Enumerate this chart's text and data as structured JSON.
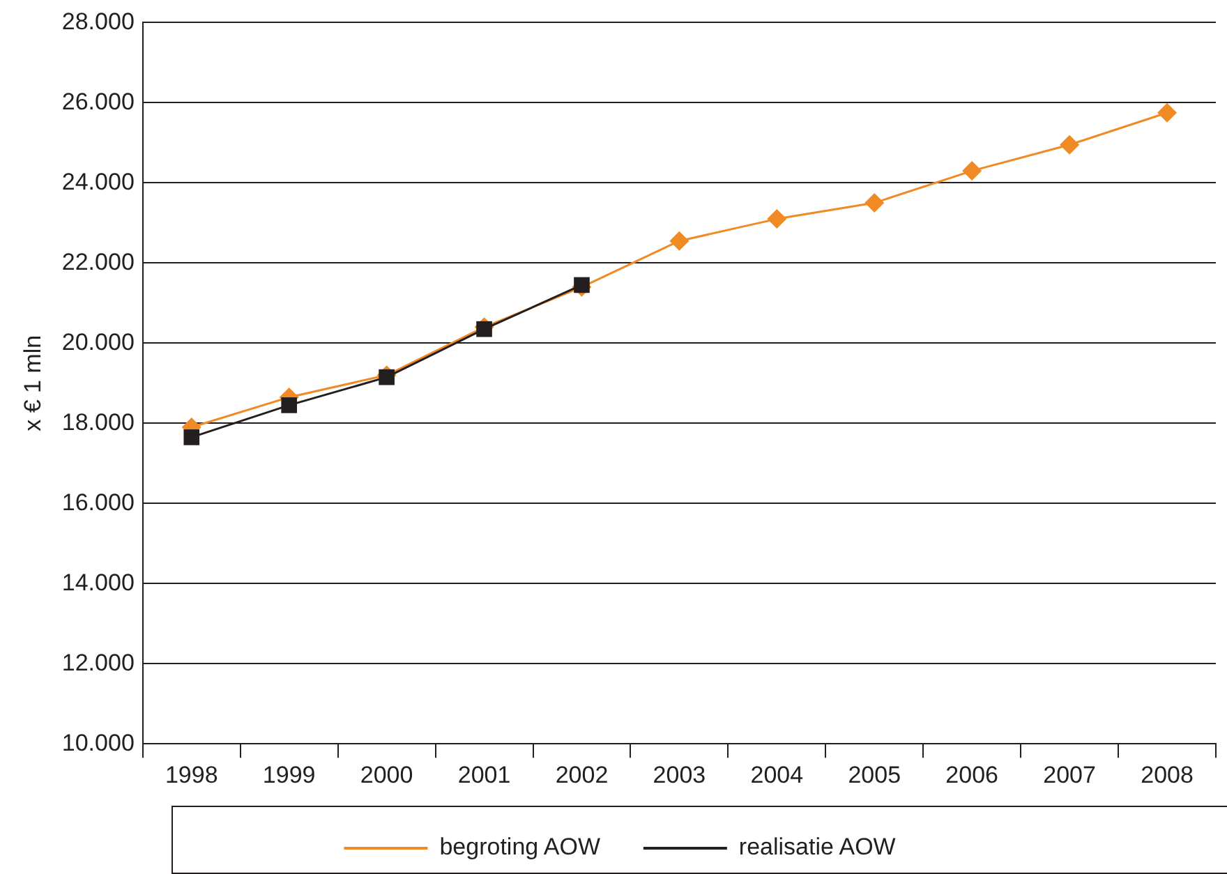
{
  "chart_data": {
    "type": "line",
    "ylabel": "x € 1 mln",
    "categories": [
      "1998",
      "1999",
      "2000",
      "2001",
      "2002",
      "2003",
      "2004",
      "2005",
      "2006",
      "2007",
      "2008"
    ],
    "series": [
      {
        "name": "begroting AOW",
        "color": "#f08a24",
        "marker": "diamond",
        "values": [
          17900,
          18650,
          19200,
          20400,
          21400,
          22550,
          23100,
          23500,
          24300,
          24950,
          25750
        ]
      },
      {
        "name": "realisatie AOW",
        "color": "#231f20",
        "marker": "square",
        "values": [
          17650,
          18450,
          19150,
          20350,
          21450,
          null,
          null,
          null,
          null,
          null,
          null
        ]
      }
    ],
    "ylim": [
      10000,
      28000
    ],
    "yticks": [
      {
        "value": 10000,
        "label": "10.000"
      },
      {
        "value": 12000,
        "label": "12.000"
      },
      {
        "value": 14000,
        "label": "14.000"
      },
      {
        "value": 16000,
        "label": "16.000"
      },
      {
        "value": 18000,
        "label": "18.000"
      },
      {
        "value": 20000,
        "label": "20.000"
      },
      {
        "value": 22000,
        "label": "22.000"
      },
      {
        "value": 24000,
        "label": "24.000"
      },
      {
        "value": 26000,
        "label": "26.000"
      },
      {
        "value": 28000,
        "label": "28.000"
      }
    ],
    "grid": "y",
    "legend": "bottom",
    "line_style": "solid"
  }
}
